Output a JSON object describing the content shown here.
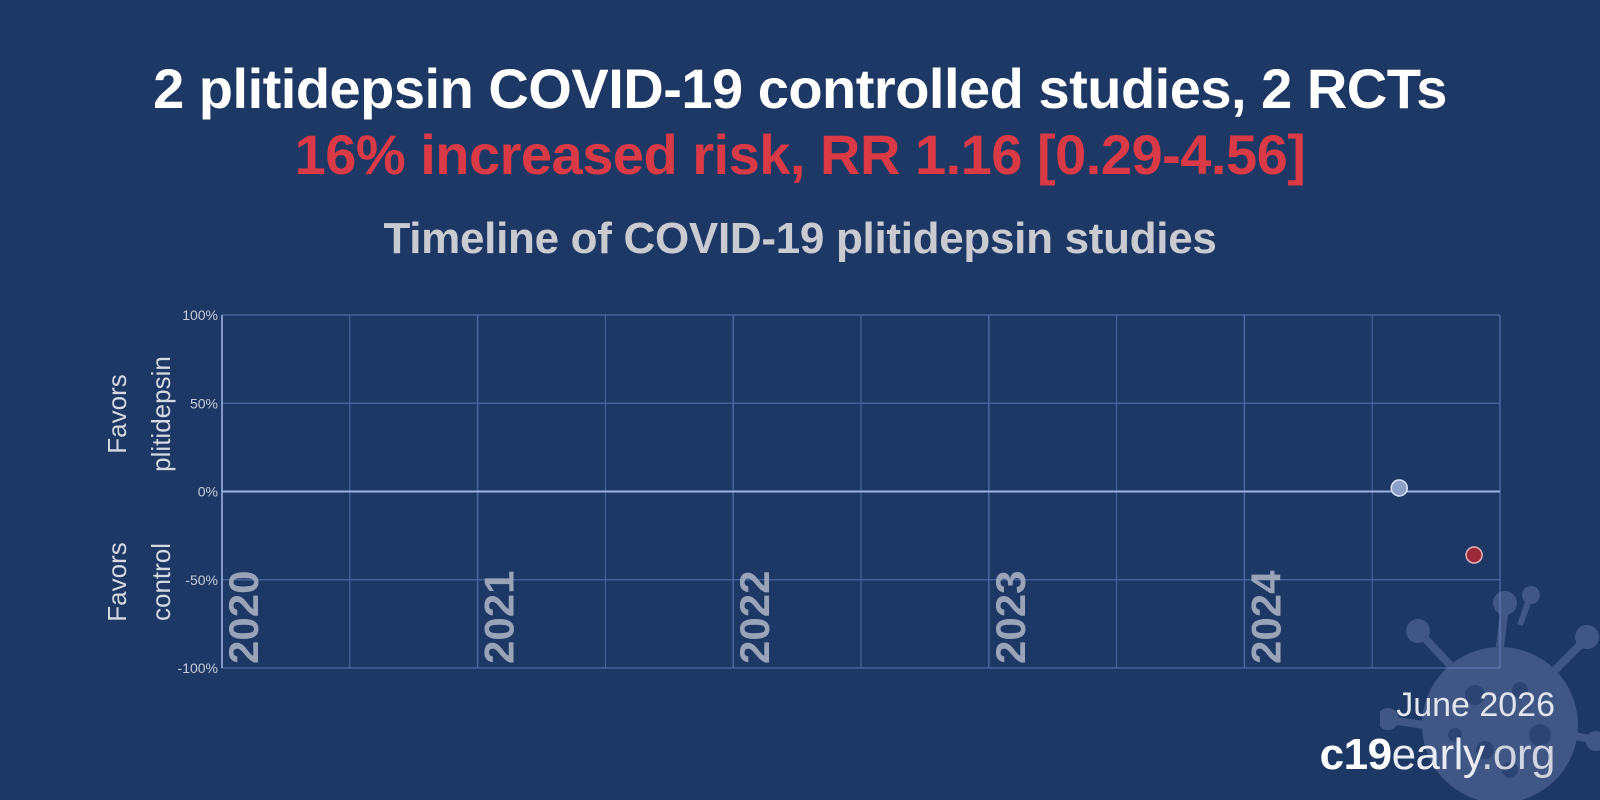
{
  "header": {
    "title": "2 plitidepsin COVID-19 controlled studies, 2 RCTs",
    "subtitle": "16% increased risk, RR 1.16 [0.29-4.56]",
    "chart_title": "Timeline of COVID-19 plitidepsin studies"
  },
  "footer": {
    "date": "June 2026",
    "site_bold": "c19",
    "site_mid": "early",
    "site_light": ".org"
  },
  "colors": {
    "background": "#1e3865",
    "title": "#ffffff",
    "subtitle": "#d93a45",
    "favorable_point": "#8e9fc7",
    "unfavorable_point": "#9a2a3a"
  },
  "chart_data": {
    "type": "scatter",
    "title": "Timeline of COVID-19 plitidepsin studies",
    "x_axis": {
      "type": "date",
      "range": [
        "2020-01-01",
        "2024-12-31"
      ],
      "tick_labels": [
        "2020",
        "2021",
        "2022",
        "2023",
        "2024"
      ]
    },
    "y_axis": {
      "range": [
        -100,
        100
      ],
      "ticks": [
        100,
        50,
        0,
        -50,
        -100
      ],
      "tick_labels": [
        "100%",
        "50%",
        "0%",
        "-50%",
        "-100%"
      ]
    },
    "side_labels": {
      "top": [
        "Favors",
        "plitidepsin"
      ],
      "bottom": [
        "Favors",
        "control"
      ]
    },
    "grid": true,
    "points": [
      {
        "date": "2024-08-10",
        "improvement": 2,
        "favorable": true
      },
      {
        "date": "2024-11-25",
        "improvement": -36,
        "favorable": false
      }
    ]
  }
}
